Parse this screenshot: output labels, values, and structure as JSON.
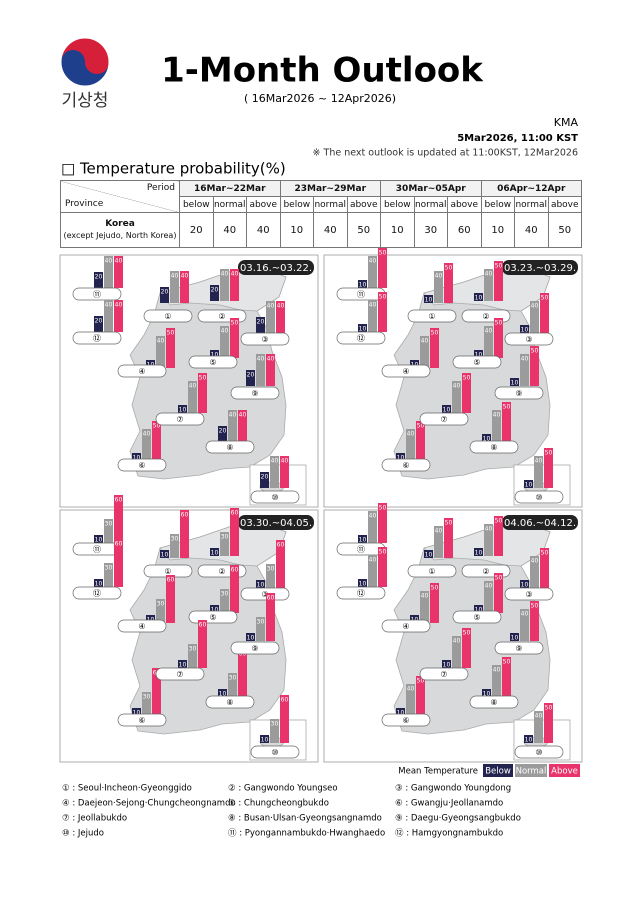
{
  "header": {
    "logo_text": "기상청",
    "title": "1-Month Outlook",
    "subtitle": "( 16Mar2026 ~ 12Apr2026)"
  },
  "meta": {
    "agency": "KMA",
    "issued": "5Mar2026, 11:00 KST",
    "note": "※ The next outlook is updated at 11:00KST, 12Mar2026"
  },
  "section_title": "□ Temperature probability(%)",
  "table": {
    "period_label": "Period",
    "province_label": "Province",
    "periods": [
      "16Mar~22Mar",
      "23Mar~29Mar",
      "30Mar~05Apr",
      "06Apr~12Apr"
    ],
    "columns": [
      "below",
      "normal",
      "above"
    ],
    "rows": [
      {
        "name": "Korea",
        "note": "(except Jejudo, North Korea)",
        "values": [
          [
            20,
            40,
            40
          ],
          [
            10,
            40,
            50
          ],
          [
            10,
            30,
            60
          ],
          [
            10,
            40,
            50
          ]
        ]
      }
    ]
  },
  "panels": [
    {
      "date": "03.16.~03.22.",
      "regions": [
        {
          "label": "⑪",
          "values": [
            20,
            40,
            40
          ]
        },
        {
          "label": "⑫",
          "values": [
            20,
            40,
            40
          ]
        },
        {
          "label": "①",
          "values": [
            20,
            40,
            40
          ]
        },
        {
          "label": "②",
          "values": [
            20,
            40,
            40
          ]
        },
        {
          "label": "③",
          "values": [
            20,
            40,
            40
          ]
        },
        {
          "label": "④",
          "values": [
            10,
            40,
            50
          ]
        },
        {
          "label": "⑤",
          "values": [
            10,
            40,
            50
          ]
        },
        {
          "label": "⑥",
          "values": [
            10,
            40,
            50
          ]
        },
        {
          "label": "⑦",
          "values": [
            10,
            40,
            50
          ]
        },
        {
          "label": "⑧",
          "values": [
            20,
            40,
            40
          ]
        },
        {
          "label": "⑨",
          "values": [
            20,
            40,
            40
          ]
        },
        {
          "label": "⑩",
          "values": [
            20,
            40,
            40
          ]
        }
      ]
    },
    {
      "date": "03.23.~03.29.",
      "regions": [
        {
          "label": "⑪",
          "values": [
            10,
            40,
            50
          ]
        },
        {
          "label": "⑫",
          "values": [
            10,
            40,
            50
          ]
        },
        {
          "label": "①",
          "values": [
            10,
            40,
            50
          ]
        },
        {
          "label": "②",
          "values": [
            10,
            40,
            50
          ]
        },
        {
          "label": "③",
          "values": [
            10,
            40,
            50
          ]
        },
        {
          "label": "④",
          "values": [
            10,
            40,
            50
          ]
        },
        {
          "label": "⑤",
          "values": [
            10,
            40,
            50
          ]
        },
        {
          "label": "⑥",
          "values": [
            10,
            40,
            50
          ]
        },
        {
          "label": "⑦",
          "values": [
            10,
            40,
            50
          ]
        },
        {
          "label": "⑧",
          "values": [
            10,
            40,
            50
          ]
        },
        {
          "label": "⑨",
          "values": [
            10,
            40,
            50
          ]
        },
        {
          "label": "⑩",
          "values": [
            10,
            40,
            50
          ]
        }
      ]
    },
    {
      "date": "03.30.~04.05.",
      "regions": [
        {
          "label": "⑪",
          "values": [
            10,
            30,
            60
          ]
        },
        {
          "label": "⑫",
          "values": [
            10,
            30,
            60
          ]
        },
        {
          "label": "①",
          "values": [
            10,
            30,
            60
          ]
        },
        {
          "label": "②",
          "values": [
            10,
            30,
            60
          ]
        },
        {
          "label": "③",
          "values": [
            10,
            30,
            60
          ]
        },
        {
          "label": "④",
          "values": [
            10,
            30,
            60
          ]
        },
        {
          "label": "⑤",
          "values": [
            10,
            30,
            60
          ]
        },
        {
          "label": "⑥",
          "values": [
            10,
            30,
            60
          ]
        },
        {
          "label": "⑦",
          "values": [
            10,
            30,
            60
          ]
        },
        {
          "label": "⑧",
          "values": [
            10,
            30,
            60
          ]
        },
        {
          "label": "⑨",
          "values": [
            10,
            30,
            60
          ]
        },
        {
          "label": "⑩",
          "values": [
            10,
            30,
            60
          ]
        }
      ]
    },
    {
      "date": "04.06.~04.12.",
      "regions": [
        {
          "label": "⑪",
          "values": [
            10,
            40,
            50
          ]
        },
        {
          "label": "⑫",
          "values": [
            10,
            40,
            50
          ]
        },
        {
          "label": "①",
          "values": [
            10,
            40,
            50
          ]
        },
        {
          "label": "②",
          "values": [
            10,
            40,
            50
          ]
        },
        {
          "label": "③",
          "values": [
            10,
            40,
            50
          ]
        },
        {
          "label": "④",
          "values": [
            10,
            40,
            50
          ]
        },
        {
          "label": "⑤",
          "values": [
            10,
            40,
            50
          ]
        },
        {
          "label": "⑥",
          "values": [
            10,
            40,
            50
          ]
        },
        {
          "label": "⑦",
          "values": [
            10,
            40,
            50
          ]
        },
        {
          "label": "⑧",
          "values": [
            10,
            40,
            50
          ]
        },
        {
          "label": "⑨",
          "values": [
            10,
            40,
            50
          ]
        },
        {
          "label": "⑩",
          "values": [
            10,
            40,
            50
          ]
        }
      ]
    }
  ],
  "legend": {
    "title": "Mean Temperature",
    "items": [
      "Below",
      "Normal",
      "Above"
    ],
    "colors": [
      "#23234f",
      "#9b9b9b",
      "#e8336b"
    ]
  },
  "footnotes": [
    "① : Seoul·Incheon·Gyeonggido",
    "② : Gangwondo Youngseo",
    "③ : Gangwondo Youngdong",
    "④ : Daejeon·Sejong·Chungcheongnamdo",
    "⑤ : Chungcheongbukdo",
    "⑥ : Gwangju·Jeollanamdo",
    "⑦ : Jeollabukdo",
    "⑧ : Busan·Ulsan·Gyeongsangnamdo",
    "⑨ : Daegu·Gyeongsangbukdo",
    "⑩ : Jejudo",
    "⑪ : Pyongannambukdo·Hwanghaedo",
    "⑫ : Hamgyongnambukdo"
  ]
}
